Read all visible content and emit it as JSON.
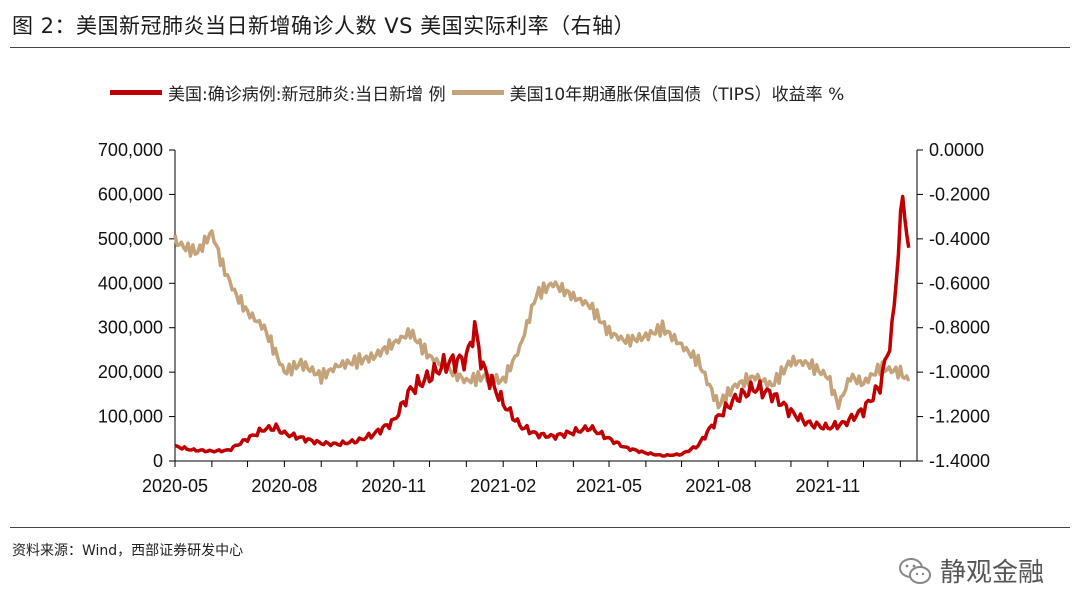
{
  "title": "图 2：美国新冠肺炎当日新增确诊人数 VS 美国实际利率（右轴）",
  "source": "资料来源：Wind，西部证券研发中心",
  "brand": "静观金融",
  "colors": {
    "series1": "#c00000",
    "series2": "#c4a37a",
    "axis": "#000000"
  },
  "chart_data": {
    "type": "line",
    "legend_position": "top",
    "grid": false,
    "xlabels": [
      "2020-05",
      "2020-08",
      "2020-11",
      "2021-02",
      "2021-05",
      "2021-08",
      "2021-11"
    ],
    "x_range": [
      "2020-05-01",
      "2022-01-15"
    ],
    "ylim_left": [
      0,
      700000
    ],
    "ylim_right": [
      -1.4,
      0.0
    ],
    "yticks_left": [
      "0",
      "100,000",
      "200,000",
      "300,000",
      "400,000",
      "500,000",
      "600,000",
      "700,000"
    ],
    "yticks_right": [
      "-1.4000",
      "-1.2000",
      "-1.0000",
      "-0.8000",
      "-0.6000",
      "-0.4000",
      "-0.2000",
      "0.0000"
    ],
    "series": [
      {
        "name": "美国:确诊病例:新冠肺炎:当日新增 例",
        "axis": "left",
        "points": [
          [
            "2020-05-01",
            33000
          ],
          [
            "2020-05-15",
            25000
          ],
          [
            "2020-06-01",
            22000
          ],
          [
            "2020-06-15",
            24000
          ],
          [
            "2020-07-01",
            50000
          ],
          [
            "2020-07-15",
            72000
          ],
          [
            "2020-07-25",
            75000
          ],
          [
            "2020-08-01",
            62000
          ],
          [
            "2020-08-15",
            52000
          ],
          [
            "2020-09-01",
            40000
          ],
          [
            "2020-09-15",
            38000
          ],
          [
            "2020-10-01",
            45000
          ],
          [
            "2020-10-15",
            60000
          ],
          [
            "2020-11-01",
            90000
          ],
          [
            "2020-11-15",
            160000
          ],
          [
            "2020-12-01",
            190000
          ],
          [
            "2020-12-15",
            220000
          ],
          [
            "2021-01-01",
            230000
          ],
          [
            "2021-01-08",
            300000
          ],
          [
            "2021-01-15",
            210000
          ],
          [
            "2021-02-01",
            130000
          ],
          [
            "2021-02-15",
            80000
          ],
          [
            "2021-03-01",
            60000
          ],
          [
            "2021-03-15",
            55000
          ],
          [
            "2021-04-01",
            65000
          ],
          [
            "2021-04-15",
            75000
          ],
          [
            "2021-05-01",
            50000
          ],
          [
            "2021-05-15",
            30000
          ],
          [
            "2021-06-01",
            18000
          ],
          [
            "2021-06-15",
            12000
          ],
          [
            "2021-07-01",
            15000
          ],
          [
            "2021-07-15",
            35000
          ],
          [
            "2021-08-01",
            100000
          ],
          [
            "2021-08-15",
            140000
          ],
          [
            "2021-09-01",
            165000
          ],
          [
            "2021-09-15",
            150000
          ],
          [
            "2021-10-01",
            110000
          ],
          [
            "2021-10-15",
            85000
          ],
          [
            "2021-11-01",
            75000
          ],
          [
            "2021-11-15",
            85000
          ],
          [
            "2021-12-01",
            115000
          ],
          [
            "2021-12-15",
            170000
          ],
          [
            "2021-12-25",
            290000
          ],
          [
            "2022-01-03",
            600000
          ],
          [
            "2022-01-08",
            480000
          ]
        ]
      },
      {
        "name": "美国10年期通胀保值国债（TIPS）收益率 %",
        "axis": "right",
        "points": [
          [
            "2020-05-01",
            -0.41
          ],
          [
            "2020-05-10",
            -0.44
          ],
          [
            "2020-05-20",
            -0.46
          ],
          [
            "2020-06-01",
            -0.37
          ],
          [
            "2020-06-10",
            -0.52
          ],
          [
            "2020-06-20",
            -0.64
          ],
          [
            "2020-07-01",
            -0.73
          ],
          [
            "2020-07-15",
            -0.8
          ],
          [
            "2020-08-01",
            -1.0
          ],
          [
            "2020-08-15",
            -0.96
          ],
          [
            "2020-09-01",
            -1.02
          ],
          [
            "2020-09-15",
            -0.97
          ],
          [
            "2020-10-01",
            -0.95
          ],
          [
            "2020-10-15",
            -0.93
          ],
          [
            "2020-11-01",
            -0.87
          ],
          [
            "2020-11-15",
            -0.82
          ],
          [
            "2020-12-01",
            -0.93
          ],
          [
            "2020-12-15",
            -0.98
          ],
          [
            "2021-01-01",
            -1.04
          ],
          [
            "2021-01-15",
            -1.02
          ],
          [
            "2021-02-01",
            -1.04
          ],
          [
            "2021-02-15",
            -0.89
          ],
          [
            "2021-03-01",
            -0.65
          ],
          [
            "2021-03-15",
            -0.6
          ],
          [
            "2021-04-01",
            -0.66
          ],
          [
            "2021-04-15",
            -0.7
          ],
          [
            "2021-05-01",
            -0.82
          ],
          [
            "2021-05-15",
            -0.86
          ],
          [
            "2021-06-01",
            -0.84
          ],
          [
            "2021-06-15",
            -0.8
          ],
          [
            "2021-07-01",
            -0.88
          ],
          [
            "2021-07-15",
            -0.95
          ],
          [
            "2021-08-01",
            -1.15
          ],
          [
            "2021-08-15",
            -1.06
          ],
          [
            "2021-09-01",
            -1.02
          ],
          [
            "2021-09-15",
            -1.06
          ],
          [
            "2021-10-01",
            -0.95
          ],
          [
            "2021-10-15",
            -0.96
          ],
          [
            "2021-11-01",
            -1.02
          ],
          [
            "2021-11-10",
            -1.15
          ],
          [
            "2021-11-20",
            -1.02
          ],
          [
            "2021-12-01",
            -1.05
          ],
          [
            "2021-12-15",
            -0.98
          ],
          [
            "2022-01-01",
            -1.0
          ],
          [
            "2022-01-08",
            -1.04
          ]
        ]
      }
    ]
  }
}
